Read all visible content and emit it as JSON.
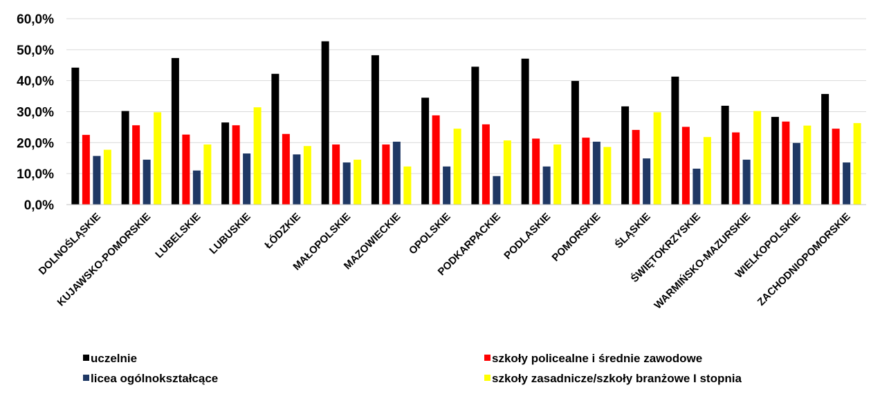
{
  "chart_data": {
    "type": "bar",
    "title": "",
    "xlabel": "",
    "ylabel": "",
    "ylim": [
      0,
      60
    ],
    "y_ticks": [
      "0,0%",
      "10,0%",
      "20,0%",
      "30,0%",
      "40,0%",
      "50,0%",
      "60,0%"
    ],
    "grid": "horizontal",
    "legend_placement": "bottom",
    "categories": [
      "DOLNOŚLĄSKIE",
      "KUJAWSKO-POMORSKIE",
      "LUBELSKIE",
      "LUBUSKIE",
      "ŁÓDZKIE",
      "MAŁOPOLSKIE",
      "MAZOWIECKIE",
      "OPOLSKIE",
      "PODKARPACKIE",
      "PODLASKIE",
      "POMORSKIE",
      "ŚLĄSKIE",
      "ŚWIĘTOKRZYSKIE",
      "WARMIŃSKO-MAZURSKIE",
      "WIELKOPOLSKIE",
      "ZACHODNIOPOMORSKIE"
    ],
    "series": [
      {
        "name": "uczelnie",
        "color": "#000000",
        "values": [
          44.2,
          30.2,
          47.3,
          26.5,
          42.2,
          52.7,
          48.2,
          34.5,
          44.5,
          47.1,
          39.9,
          31.7,
          41.3,
          31.9,
          28.3,
          35.7
        ]
      },
      {
        "name": "szkoły policealne i średnie zawodowe",
        "color": "#ff0000",
        "values": [
          22.5,
          25.6,
          22.6,
          25.6,
          22.8,
          19.4,
          19.4,
          28.8,
          25.9,
          21.3,
          21.6,
          24.1,
          25.1,
          23.3,
          26.8,
          24.5
        ]
      },
      {
        "name": "licea ogólnokształcące",
        "color": "#1f3864",
        "values": [
          15.7,
          14.5,
          11.0,
          16.5,
          16.2,
          13.6,
          20.3,
          12.3,
          9.2,
          12.3,
          20.3,
          14.9,
          11.6,
          14.5,
          19.9,
          13.6
        ]
      },
      {
        "name": "szkoły zasadnicze/szkoły branżowe I stopnia",
        "color": "#ffff00",
        "values": [
          17.7,
          29.8,
          19.4,
          31.4,
          18.9,
          14.5,
          12.3,
          24.5,
          20.7,
          19.4,
          18.6,
          29.8,
          21.8,
          30.2,
          25.5,
          26.3
        ]
      }
    ]
  }
}
